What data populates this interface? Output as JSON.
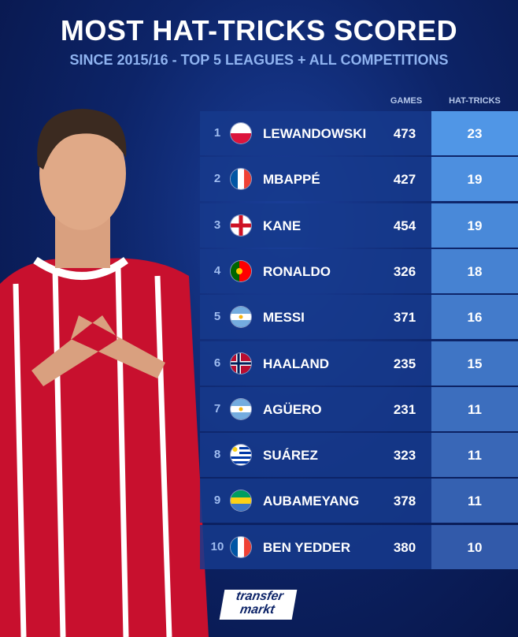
{
  "header": {
    "title": "MOST HAT-TRICKS SCORED",
    "subtitle": "SINCE 2015/16 - TOP 5 LEAGUES + ALL COMPETITIONS"
  },
  "table": {
    "columns": [
      "GAMES",
      "HAT-TRICKS"
    ],
    "rows": [
      [
        "1",
        "LEWANDOWSKI",
        "473",
        "23"
      ],
      [
        "2",
        "MBAPPÉ",
        "427",
        "19"
      ],
      [
        "3",
        "KANE",
        "454",
        "19"
      ],
      [
        "4",
        "RONALDO",
        "326",
        "18"
      ],
      [
        "5",
        "MESSI",
        "371",
        "16"
      ],
      [
        "6",
        "HAALAND",
        "235",
        "15"
      ],
      [
        "7",
        "AGÜERO",
        "231",
        "11"
      ],
      [
        "8",
        "SUÁREZ",
        "323",
        "11"
      ],
      [
        "9",
        "AUBAMEYANG",
        "378",
        "11"
      ],
      [
        "10",
        "BEN YEDDER",
        "380",
        "10"
      ]
    ]
  },
  "footer": {
    "logo_top": "transfer",
    "logo_bottom": "markt"
  }
}
